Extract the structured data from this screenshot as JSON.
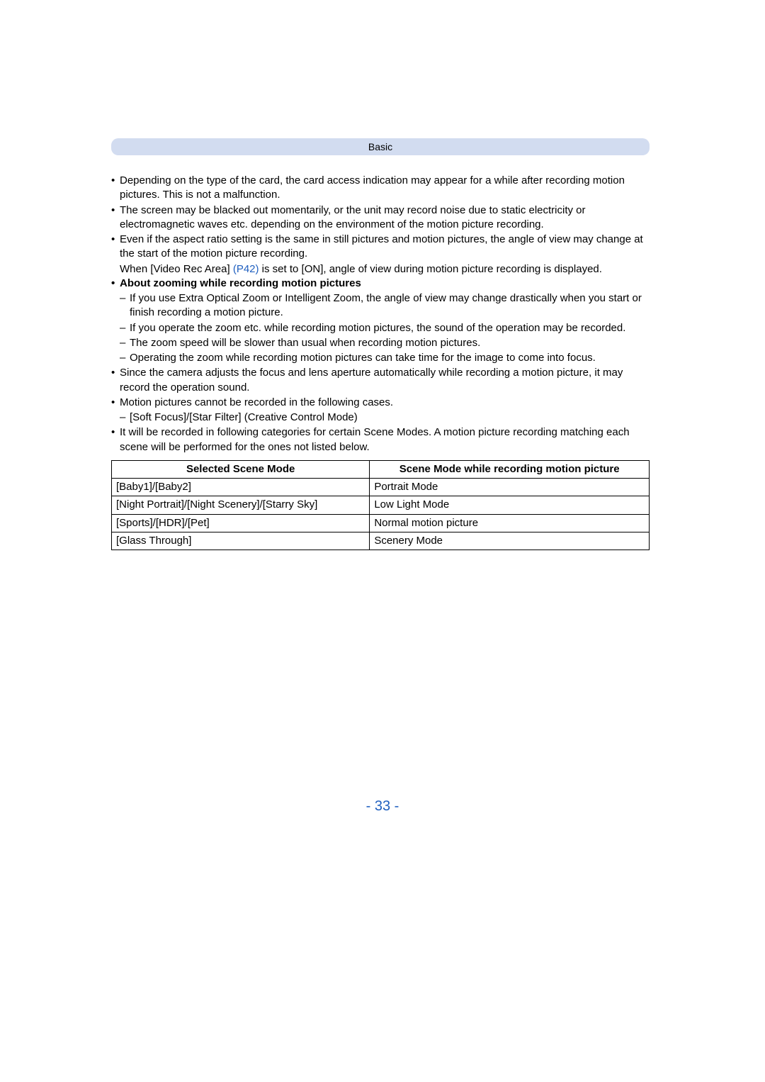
{
  "header": {
    "title": "Basic"
  },
  "bullets": {
    "b1": "Depending on the type of the card, the card access indication may appear for a while after recording motion pictures. This is not a malfunction.",
    "b2": "The screen may be blacked out momentarily, or the unit may record noise due to static electricity or electromagnetic waves etc. depending on the environment of the motion picture recording.",
    "b3a": "Even if the aspect ratio setting is the same in still pictures and motion pictures, the angle of view may change at the start of the motion picture recording.",
    "b3b_pre": "When [Video Rec Area] ",
    "b3b_link": "(P42)",
    "b3b_post": " is set to [ON], angle of view during motion picture recording is displayed.",
    "b4": "About zooming while recording motion pictures",
    "s1": "If you use Extra Optical Zoom or Intelligent Zoom, the angle of view may change drastically when you start or finish recording a motion picture.",
    "s2": "If you operate the zoom etc. while recording motion pictures, the sound of the operation may be recorded.",
    "s3": "The zoom speed will be slower than usual when recording motion pictures.",
    "s4": "Operating the zoom while recording motion pictures can take time for the image to come into focus.",
    "b5": "Since the camera adjusts the focus and lens aperture automatically while recording a motion picture, it may record the operation sound.",
    "b6": "Motion pictures cannot be recorded in the following cases.",
    "s5": "[Soft Focus]/[Star Filter] (Creative Control Mode)",
    "b7": "It will be recorded in following categories for certain Scene Modes. A motion picture recording matching each scene will be performed for the ones not listed below."
  },
  "table": {
    "headers": {
      "c1": "Selected Scene Mode",
      "c2": "Scene Mode while recording motion picture"
    },
    "rows": [
      {
        "c1": "[Baby1]/[Baby2]",
        "c2": "Portrait Mode"
      },
      {
        "c1": "[Night Portrait]/[Night Scenery]/[Starry Sky]",
        "c2": "Low Light Mode"
      },
      {
        "c1": "[Sports]/[HDR]/[Pet]",
        "c2": "Normal motion picture"
      },
      {
        "c1": "[Glass Through]",
        "c2": "Scenery Mode"
      }
    ]
  },
  "page_number": "- 33 -"
}
